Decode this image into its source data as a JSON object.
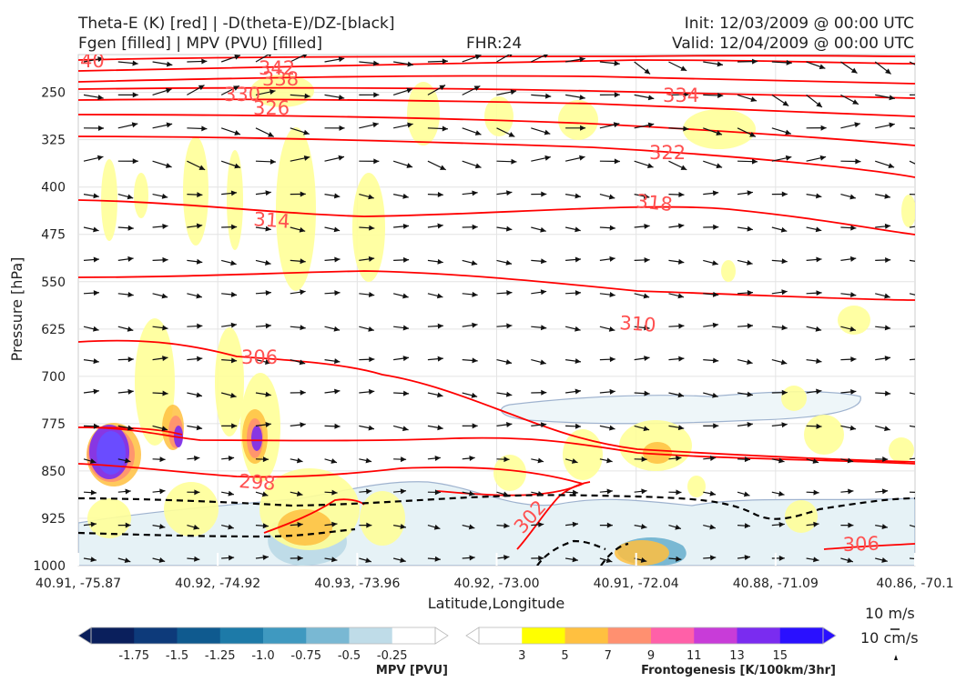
{
  "header": {
    "title_line1": "Theta-E (K) [red] | -D(theta-E)/DZ-[black]",
    "title_line2": "Fgen [filled] | MPV (PVU) [filled]",
    "fhr": "FHR:24",
    "init": "Init: 12/03/2009 @ 00:00 UTC",
    "valid": "Valid: 12/04/2009 @ 00:00 UTC"
  },
  "chart_data": {
    "type": "cross-section",
    "xlabel": "Latitude,Longitude",
    "ylabel": "Pressure [hPa]",
    "x_ticks": [
      "40.91, -75.87",
      "40.92, -74.92",
      "40.93, -73.96",
      "40.92, -73.00",
      "40.91, -72.04",
      "40.88, -71.09",
      "40.86, -70.1"
    ],
    "y_ticks": [
      250,
      325,
      400,
      475,
      550,
      625,
      700,
      775,
      850,
      925,
      1000
    ],
    "ylim": [
      1000,
      190
    ],
    "y_inverted": true,
    "grid": true,
    "theta_e_color": "#ff0000",
    "theta_e_contour_labels": [
      342,
      338,
      334,
      330,
      326,
      322,
      318,
      314,
      310,
      306,
      306,
      302,
      298
    ],
    "dthetae_dz_style": "black dashed",
    "wind_arrow_color": "#111111",
    "mpv_colorbar": {
      "label": "MPV [PVU]",
      "ticks": [
        "-1.75",
        "-1.5",
        "-1.25",
        "-1.0",
        "-0.75",
        "-0.5",
        "-0.25"
      ],
      "colors": [
        "#0a1f5c",
        "#0d3a7a",
        "#0f5a8f",
        "#1d7aa8",
        "#3f99c0",
        "#79b8d3",
        "#bfdce8",
        "#ffffff"
      ]
    },
    "fgen_colorbar": {
      "label": "Frontogenesis [K/100km/3hr]",
      "ticks": [
        "3",
        "5",
        "7",
        "9",
        "11",
        "13",
        "15"
      ],
      "colors": [
        "#ffffff",
        "#ffff00",
        "#ffc040",
        "#ff9070",
        "#ff60a8",
        "#c83cd8",
        "#7a2cf0",
        "#2a10ff"
      ]
    },
    "reference_vectors": {
      "horizontal": "10 m/s",
      "vertical": "10 cm/s"
    }
  }
}
